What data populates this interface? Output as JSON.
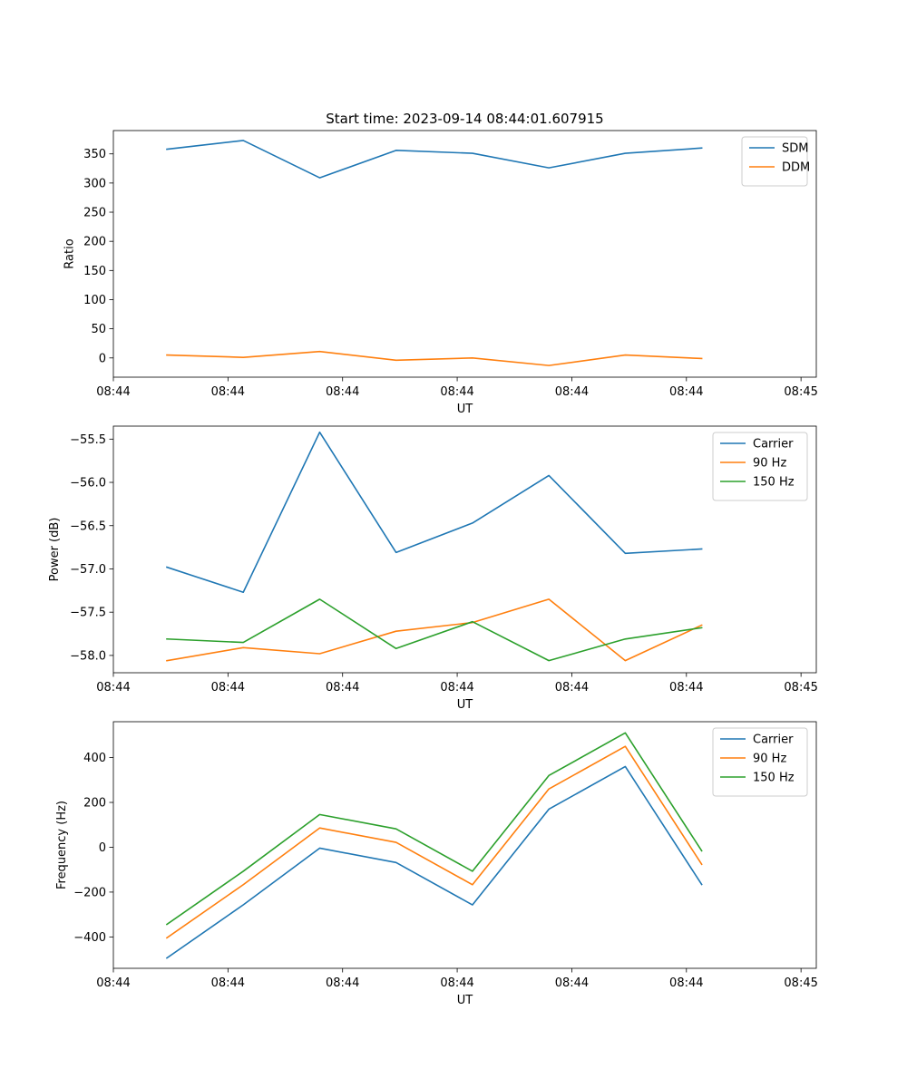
{
  "figure": {
    "title": "Start time: 2023-09-14 08:44:01.607915"
  },
  "chart_data": [
    {
      "type": "line",
      "title": "Start time: 2023-09-14 08:44:01.607915",
      "xlabel": "UT",
      "ylabel": "Ratio",
      "xlim": [
        -0.7,
        8.5
      ],
      "ylim": [
        -33,
        390
      ],
      "x": [
        0,
        1,
        2,
        3,
        4,
        5,
        6,
        7
      ],
      "xticks": [
        -0.7,
        0.8,
        2.3,
        3.8,
        5.3,
        6.8,
        8.3
      ],
      "xtick_labels": [
        "08:44",
        "08:44",
        "08:44",
        "08:44",
        "08:44",
        "08:44",
        "08:45"
      ],
      "yticks": [
        0,
        50,
        100,
        150,
        200,
        250,
        300,
        350
      ],
      "ytick_labels": [
        "0",
        "50",
        "100",
        "150",
        "200",
        "250",
        "300",
        "350"
      ],
      "legend_position": "top-right",
      "series": [
        {
          "name": "SDM",
          "color": "#1f77b4",
          "values": [
            358,
            373,
            309,
            356,
            351,
            326,
            351,
            360
          ]
        },
        {
          "name": "DDM",
          "color": "#ff7f0e",
          "values": [
            5,
            1,
            11,
            -4,
            0,
            -13,
            5,
            -1
          ]
        }
      ]
    },
    {
      "type": "line",
      "xlabel": "UT",
      "ylabel": "Power (dB)",
      "xlim": [
        -0.7,
        8.5
      ],
      "ylim": [
        -58.2,
        -55.35
      ],
      "x": [
        0,
        1,
        2,
        3,
        4,
        5,
        6,
        7
      ],
      "xticks": [
        -0.7,
        0.8,
        2.3,
        3.8,
        5.3,
        6.8,
        8.3
      ],
      "xtick_labels": [
        "08:44",
        "08:44",
        "08:44",
        "08:44",
        "08:44",
        "08:44",
        "08:45"
      ],
      "yticks": [
        -58.0,
        -57.5,
        -57.0,
        -56.5,
        -56.0,
        -55.5
      ],
      "ytick_labels": [
        "−58.0",
        "−57.5",
        "−57.0",
        "−56.5",
        "−56.0",
        "−55.5"
      ],
      "legend_position": "top-right",
      "series": [
        {
          "name": "Carrier",
          "color": "#1f77b4",
          "values": [
            -56.98,
            -57.27,
            -55.42,
            -56.81,
            -56.47,
            -55.92,
            -56.82,
            -56.77
          ]
        },
        {
          "name": "90 Hz",
          "color": "#ff7f0e",
          "values": [
            -58.06,
            -57.91,
            -57.98,
            -57.72,
            -57.62,
            -57.35,
            -58.06,
            -57.65
          ]
        },
        {
          "name": "150 Hz",
          "color": "#2ca02c",
          "values": [
            -57.81,
            -57.85,
            -57.35,
            -57.92,
            -57.61,
            -58.06,
            -57.81,
            -57.68
          ]
        }
      ]
    },
    {
      "type": "line",
      "xlabel": "UT",
      "ylabel": "Frequency (Hz)",
      "xlim": [
        -0.7,
        8.5
      ],
      "ylim": [
        -540,
        560
      ],
      "x": [
        0,
        1,
        2,
        3,
        4,
        5,
        6,
        7
      ],
      "xticks": [
        -0.7,
        0.8,
        2.3,
        3.8,
        5.3,
        6.8,
        8.3
      ],
      "xtick_labels": [
        "08:44",
        "08:44",
        "08:44",
        "08:44",
        "08:44",
        "08:44",
        "08:45"
      ],
      "yticks": [
        -400,
        -200,
        0,
        200,
        400
      ],
      "ytick_labels": [
        "−400",
        "−200",
        "0",
        "200",
        "400"
      ],
      "legend_position": "top-right",
      "series": [
        {
          "name": "Carrier",
          "color": "#1f77b4",
          "values": [
            -494,
            -257,
            -4,
            -68,
            -257,
            170,
            360,
            -166
          ]
        },
        {
          "name": "90 Hz",
          "color": "#ff7f0e",
          "values": [
            -404,
            -167,
            86,
            22,
            -167,
            260,
            450,
            -76
          ]
        },
        {
          "name": "150 Hz",
          "color": "#2ca02c",
          "values": [
            -344,
            -107,
            146,
            82,
            -107,
            320,
            510,
            -16
          ]
        }
      ]
    }
  ]
}
